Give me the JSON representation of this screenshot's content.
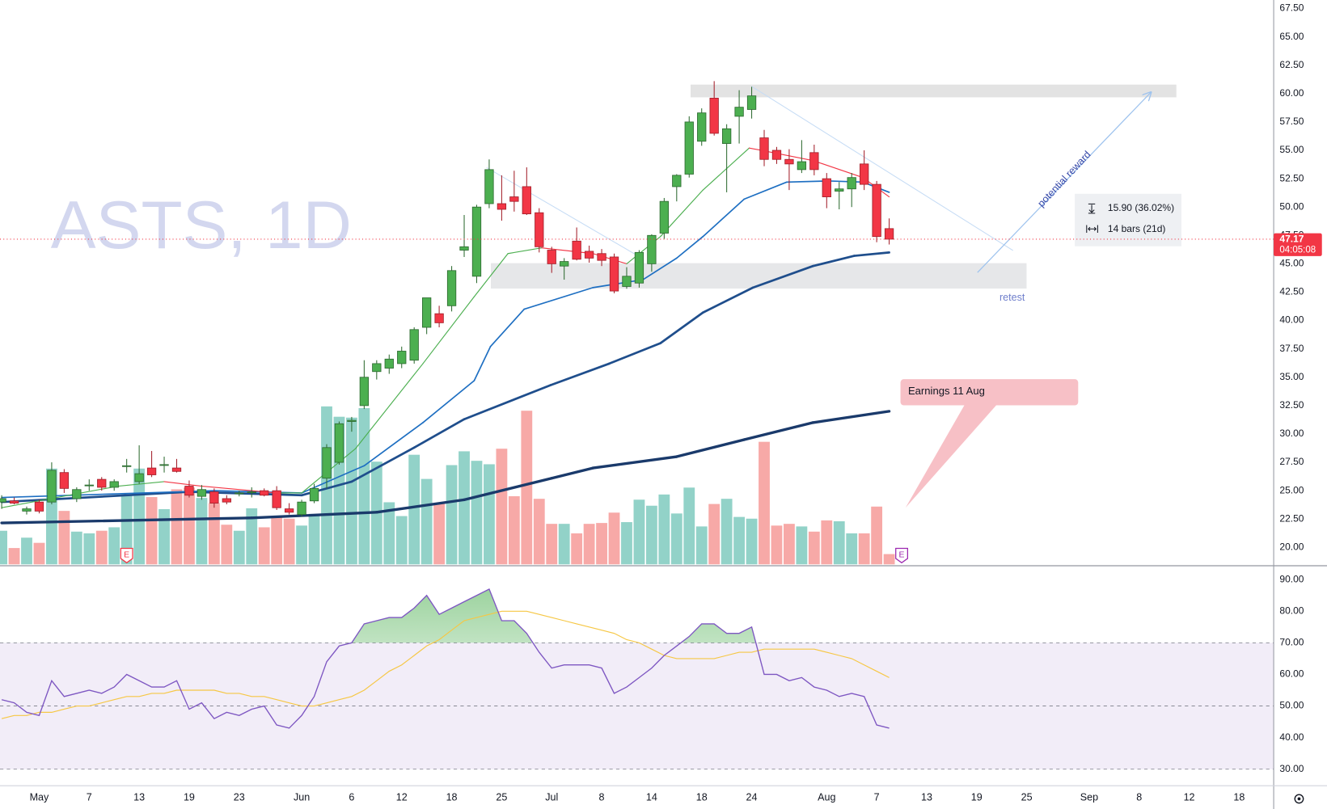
{
  "chart_data": [
    {
      "type": "candlestick",
      "title": "ASTS, 1D",
      "xlim": [
        -0.135,
        101.76
      ],
      "ylim": [
        18.5,
        68.25
      ],
      "xticks": [
        {
          "value": 3,
          "label": "May"
        },
        {
          "value": 7,
          "label": "7"
        },
        {
          "value": 11,
          "label": "13"
        },
        {
          "value": 15,
          "label": "19"
        },
        {
          "value": 19,
          "label": "23"
        },
        {
          "value": 24,
          "label": "Jun"
        },
        {
          "value": 28,
          "label": "6"
        },
        {
          "value": 32,
          "label": "12"
        },
        {
          "value": 36,
          "label": "18"
        },
        {
          "value": 40,
          "label": "25"
        },
        {
          "value": 44,
          "label": "Jul"
        },
        {
          "value": 48,
          "label": "8"
        },
        {
          "value": 52,
          "label": "14"
        },
        {
          "value": 56,
          "label": "18"
        },
        {
          "value": 60,
          "label": "24"
        },
        {
          "value": 66,
          "label": "Aug"
        },
        {
          "value": 70,
          "label": "7"
        },
        {
          "value": 74,
          "label": "13"
        },
        {
          "value": 78,
          "label": "19"
        },
        {
          "value": 82,
          "label": "25"
        },
        {
          "value": 87,
          "label": "Sep"
        },
        {
          "value": 91,
          "label": "8"
        },
        {
          "value": 95,
          "label": "12"
        },
        {
          "value": 99,
          "label": "18"
        }
      ],
      "yticks": [
        {
          "value": 20,
          "label": "20.00"
        },
        {
          "value": 22.5,
          "label": "22.50"
        },
        {
          "value": 25,
          "label": "25.00"
        },
        {
          "value": 27.5,
          "label": "27.50"
        },
        {
          "value": 30,
          "label": "30.00"
        },
        {
          "value": 32.5,
          "label": "32.50"
        },
        {
          "value": 35,
          "label": "35.00"
        },
        {
          "value": 37.5,
          "label": "37.50"
        },
        {
          "value": 40,
          "label": "40.00"
        },
        {
          "value": 42.5,
          "label": "42.50"
        },
        {
          "value": 45,
          "label": "45.00"
        },
        {
          "value": 47.5,
          "label": "47.50"
        },
        {
          "value": 50,
          "label": "50.00"
        },
        {
          "value": 52.5,
          "label": "52.50"
        },
        {
          "value": 55,
          "label": "55.00"
        },
        {
          "value": 57.5,
          "label": "57.50"
        },
        {
          "value": 60,
          "label": "60.00"
        },
        {
          "value": 62.5,
          "label": "62.50"
        },
        {
          "value": 65,
          "label": "65.00"
        },
        {
          "value": 67.5,
          "label": "67.50"
        }
      ],
      "up_color": "#4caf50",
      "down_color": "#f23645",
      "volume_up_color": "#92d2c8",
      "volume_down_color": "#f7a9a7",
      "open": [
        24.0,
        24.1,
        23.2,
        24.0,
        24.0,
        26.6,
        24.3,
        25.5,
        26.0,
        25.3,
        27.2,
        25.8,
        27.0,
        27.3,
        27.0,
        25.4,
        24.5,
        24.9,
        24.3,
        24.8,
        24.9,
        25.0,
        25.0,
        23.4,
        22.9,
        24.1,
        26.1,
        27.5,
        31.1,
        32.5,
        35.5,
        35.8,
        36.2,
        36.5,
        39.4,
        40.6,
        41.3,
        46.2,
        43.9,
        50.3,
        50.3,
        50.9,
        51.8,
        49.5,
        46.2,
        44.8,
        47.0,
        46.1,
        45.9,
        45.6,
        43.0,
        43.3,
        45.0,
        47.7,
        51.8,
        52.9,
        55.8,
        59.6,
        55.6,
        58.0,
        58.6,
        56.1,
        55.0,
        54.2,
        53.3,
        54.8,
        52.5,
        51.4,
        51.6,
        53.8,
        52.0,
        48.1
      ],
      "high": [
        24.6,
        24.4,
        23.6,
        24.2,
        27.5,
        26.9,
        25.3,
        26.0,
        26.2,
        26.0,
        27.8,
        29.0,
        28.5,
        28.0,
        27.8,
        25.9,
        25.5,
        25.2,
        24.6,
        25.0,
        25.3,
        25.2,
        25.4,
        23.9,
        24.2,
        25.6,
        29.1,
        31.1,
        31.5,
        36.5,
        36.5,
        37.0,
        37.7,
        39.4,
        42.0,
        41.3,
        44.8,
        49.3,
        50.2,
        54.2,
        52.8,
        53.2,
        53.5,
        49.9,
        46.5,
        45.5,
        48.2,
        46.6,
        46.3,
        45.9,
        44.7,
        46.2,
        47.6,
        50.8,
        52.9,
        58.0,
        58.7,
        61.1,
        57.3,
        60.3,
        60.6,
        56.8,
        55.3,
        55.1,
        55.9,
        55.5,
        53.0,
        52.2,
        53.0,
        55.0,
        52.3,
        49.0
      ],
      "low": [
        23.4,
        23.8,
        22.9,
        23.0,
        23.8,
        24.8,
        24.0,
        25.0,
        25.0,
        25.0,
        26.6,
        25.6,
        26.2,
        26.6,
        26.6,
        24.4,
        24.2,
        23.5,
        23.8,
        24.5,
        24.4,
        24.5,
        23.3,
        22.9,
        22.7,
        23.9,
        25.2,
        27.3,
        30.2,
        32.2,
        34.8,
        35.3,
        35.8,
        36.2,
        38.8,
        39.4,
        40.8,
        45.6,
        43.3,
        49.9,
        48.8,
        49.6,
        49.3,
        46.0,
        44.2,
        43.6,
        45.3,
        45.1,
        44.8,
        42.4,
        42.8,
        42.9,
        44.3,
        47.2,
        50.5,
        52.6,
        55.4,
        56.3,
        51.3,
        55.6,
        57.8,
        53.6,
        53.8,
        51.5,
        53.0,
        52.8,
        49.9,
        49.8,
        50.0,
        51.5,
        46.9,
        46.7
      ],
      "close": [
        24.3,
        23.9,
        23.4,
        23.2,
        26.8,
        25.2,
        25.1,
        25.5,
        25.3,
        25.8,
        27.2,
        26.5,
        26.4,
        27.3,
        26.7,
        24.6,
        25.1,
        23.9,
        24.0,
        24.8,
        24.9,
        24.6,
        23.5,
        23.1,
        24.0,
        25.2,
        28.8,
        30.9,
        31.2,
        35.0,
        36.2,
        36.6,
        37.3,
        39.2,
        42.0,
        39.8,
        44.4,
        46.5,
        50.0,
        53.3,
        49.8,
        50.5,
        49.4,
        46.5,
        45.0,
        45.2,
        45.4,
        45.5,
        45.3,
        42.6,
        43.9,
        46.0,
        47.5,
        50.5,
        52.8,
        57.5,
        58.3,
        56.5,
        56.9,
        58.8,
        59.8,
        54.2,
        54.2,
        53.8,
        54.0,
        53.3,
        50.9,
        51.6,
        52.6,
        52.0,
        47.4,
        47.17
      ],
      "volume": [
        39,
        19,
        31,
        25,
        111,
        62,
        38,
        36,
        39,
        43,
        81,
        111,
        78,
        64,
        87,
        89,
        77,
        71,
        46,
        39,
        65,
        43,
        56,
        53,
        45,
        57,
        183,
        171,
        170,
        181,
        119,
        72,
        56,
        127,
        99,
        71,
        115,
        131,
        120,
        116,
        134,
        79,
        178,
        76,
        47,
        47,
        36,
        47,
        48,
        60,
        49,
        75,
        68,
        81,
        59,
        89,
        44,
        70,
        76,
        55,
        53,
        142,
        45,
        47,
        44,
        38,
        51,
        50,
        36,
        36,
        67,
        12
      ],
      "moving_averages": [
        {
          "color": "#1a3a6b",
          "width": 3.2,
          "x": [
            0,
            20,
            30,
            37,
            44,
            47.3,
            54,
            59.4,
            64.9,
            71
          ],
          "values": [
            22.16,
            22.6,
            23.1,
            24.2,
            26.1,
            27.0,
            28.0,
            29.5,
            31.0,
            32.0
          ]
        },
        {
          "color": "#1f4e8c",
          "width": 2.6,
          "x": [
            0,
            15,
            24,
            28,
            33,
            37,
            43.9,
            48.6,
            52.7,
            56.1,
            60.1,
            64.9,
            68.2,
            71
          ],
          "values": [
            24.0,
            24.9,
            24.6,
            25.8,
            28.8,
            31.3,
            34.3,
            36.2,
            38.0,
            40.7,
            42.9,
            44.8,
            45.7,
            46.0
          ]
        },
        {
          "color": "#1e6fc2",
          "width": 1.6,
          "x": [
            0,
            17,
            24,
            29,
            33.7,
            37.8,
            39.1,
            41.8,
            47.3,
            51.3,
            54,
            56.1,
            59.4,
            62.8,
            66.2,
            68.9,
            71
          ],
          "values": [
            24.4,
            25.0,
            24.8,
            27.2,
            31.0,
            34.7,
            37.7,
            41.0,
            42.9,
            43.6,
            45.5,
            47.4,
            50.7,
            52.2,
            52.3,
            52.2,
            51.3
          ]
        },
        {
          "color": "#4caf50",
          "down_color": "#f23645",
          "width": 1.1,
          "x": [
            0,
            9.3,
            13,
            16,
            22,
            24,
            28.3,
            33.7,
            37.8,
            40.5,
            43.2,
            47.3,
            50,
            52.7,
            56.1,
            59.8,
            60.8,
            64.9,
            68.9,
            71
          ],
          "values": [
            23.5,
            25.4,
            25.8,
            25.4,
            24.8,
            24.8,
            28.7,
            36.2,
            42.1,
            45.9,
            46.4,
            45.9,
            45.0,
            47.4,
            51.5,
            55.2,
            55.0,
            54.1,
            52.6,
            50.9
          ]
        }
      ],
      "last_price": 47.17,
      "countdown": "04:05:08",
      "events": [
        {
          "x": 10,
          "label": "E",
          "color": "#f23645"
        },
        {
          "x": 72,
          "label": "E",
          "color": "#9c27b0"
        }
      ],
      "annotations": {
        "reward": "potential reward",
        "retest": "retest",
        "measure_price": "15.90 (36.02%)",
        "measure_bars": "14 bars (21d)",
        "earnings": "Earnings 11 Aug"
      }
    },
    {
      "type": "line",
      "ylim": [
        24.9,
        94.0
      ],
      "yticks": [
        {
          "value": 30,
          "label": "30.00"
        },
        {
          "value": 40,
          "label": "40.00"
        },
        {
          "value": 50,
          "label": "50.00"
        },
        {
          "value": 60,
          "label": "60.00"
        },
        {
          "value": 70,
          "label": "70.00"
        },
        {
          "value": 80,
          "label": "80.00"
        },
        {
          "value": 90,
          "label": "90.00"
        }
      ],
      "levels": [
        70,
        50,
        30
      ],
      "band_color": "#ede7f6",
      "series": [
        {
          "color": "#7e57c2",
          "values": [
            52,
            51,
            48,
            47,
            58,
            53,
            54,
            55,
            54,
            56,
            60,
            58,
            56,
            56,
            58,
            49,
            51,
            46,
            48,
            47,
            49,
            50,
            44,
            43,
            47,
            53,
            64,
            69,
            70,
            76,
            77,
            78,
            78,
            81,
            85,
            79,
            81,
            83,
            85,
            87,
            77,
            77,
            73,
            67,
            62,
            63,
            63,
            63,
            62,
            54,
            56,
            59,
            62,
            66,
            69,
            72,
            76,
            76,
            73,
            73,
            75,
            60,
            60,
            58,
            59,
            56,
            55,
            53,
            54,
            53,
            44,
            43
          ]
        },
        {
          "color": "#f6c744",
          "values": [
            46,
            47,
            47,
            48,
            48,
            49,
            50,
            50,
            51,
            52,
            53,
            53,
            54,
            54,
            55,
            55,
            55,
            55,
            54,
            54,
            53,
            53,
            52,
            51,
            50,
            50,
            51,
            52,
            53,
            55,
            58,
            61,
            63,
            66,
            69,
            71,
            74,
            77,
            78,
            79,
            80,
            80,
            80,
            79,
            78,
            77,
            76,
            75,
            74,
            73,
            71,
            70,
            68,
            66,
            65,
            65,
            65,
            65,
            66,
            67,
            67,
            68,
            68,
            68,
            68,
            68,
            67,
            66,
            65,
            63,
            61,
            59
          ]
        }
      ]
    }
  ]
}
